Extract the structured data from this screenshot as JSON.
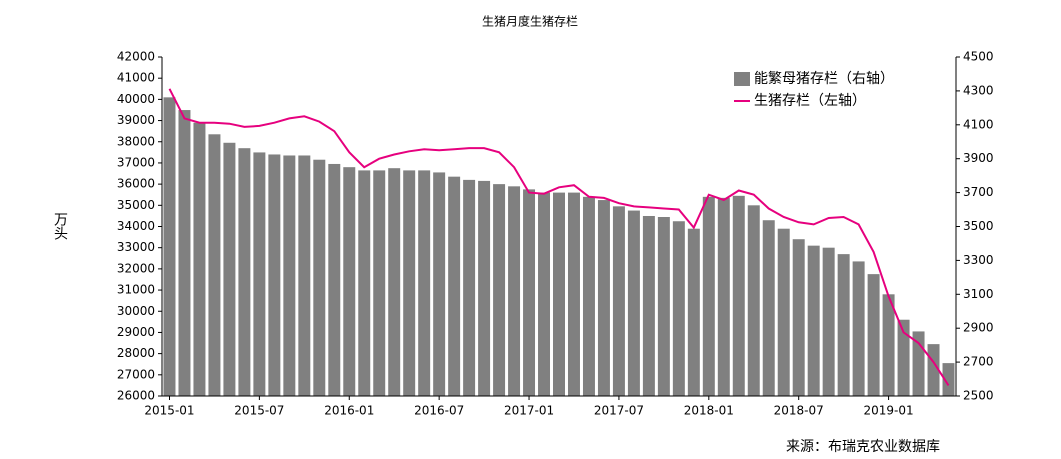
{
  "chart_data": {
    "type": "bar-line",
    "title": "生猪月度生猪存栏",
    "y_label": "万头",
    "source": "来源：布瑞克农业数据库",
    "categories": [
      "2015-01",
      null,
      null,
      null,
      null,
      null,
      "2015-07",
      null,
      null,
      null,
      null,
      null,
      "2016-01",
      null,
      null,
      null,
      null,
      null,
      "2016-07",
      null,
      null,
      null,
      null,
      null,
      "2017-01",
      null,
      null,
      null,
      null,
      null,
      "2017-07",
      null,
      null,
      null,
      null,
      null,
      "2018-01",
      null,
      null,
      null,
      null,
      null,
      "2018-07",
      null,
      null,
      null,
      null,
      null,
      "2019-01",
      null,
      null,
      null,
      null
    ],
    "series": [
      {
        "name": "能繁母猪存栏（右轴）",
        "color": "#808080",
        "type": "bar",
        "axis": "y2",
        "values": [
          4262,
          4187,
          4112,
          4044,
          3994,
          3962,
          3937,
          3925,
          3919,
          3919,
          3894,
          3869,
          3850,
          3831,
          3831,
          3844,
          3831,
          3831,
          3819,
          3794,
          3775,
          3769,
          3750,
          3737,
          3719,
          3700,
          3700,
          3700,
          3675,
          3656,
          3619,
          3594,
          3562,
          3556,
          3531,
          3487,
          3675,
          3669,
          3681,
          3625,
          3537,
          3487,
          3425,
          3387,
          3375,
          3337,
          3294,
          3219,
          3100,
          2950,
          2881,
          2806,
          2694
        ]
      },
      {
        "name": "生猪存栏（左轴）",
        "color": "#e6007e",
        "type": "line",
        "axis": "y",
        "values": [
          40500,
          39100,
          38900,
          38900,
          38850,
          38700,
          38750,
          38900,
          39100,
          39200,
          38950,
          38500,
          37500,
          36800,
          37200,
          37400,
          37550,
          37650,
          37600,
          37650,
          37700,
          37700,
          37500,
          36800,
          35600,
          35550,
          35850,
          35950,
          35400,
          35350,
          35100,
          34950,
          34900,
          34850,
          34800,
          33950,
          35500,
          35250,
          35700,
          35500,
          34850,
          34450,
          34200,
          34100,
          34400,
          34450,
          34100,
          32800,
          30700,
          29000,
          28500,
          27600,
          26500
        ]
      }
    ],
    "ylim": [
      26000,
      42000
    ],
    "yticks": [
      26000,
      27000,
      28000,
      29000,
      30000,
      31000,
      32000,
      33000,
      34000,
      35000,
      36000,
      37000,
      38000,
      39000,
      40000,
      41000,
      42000
    ],
    "y2lim": [
      2500,
      4500
    ],
    "y2ticks": [
      2500,
      2700,
      2900,
      3100,
      3300,
      3500,
      3700,
      3900,
      4100,
      4300,
      4500
    ],
    "legend": "top-right"
  }
}
